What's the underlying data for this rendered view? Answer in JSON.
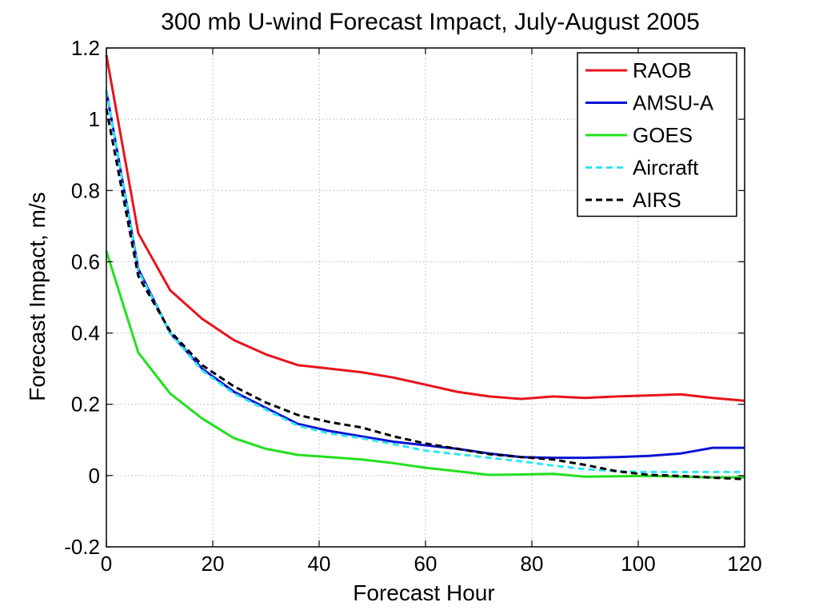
{
  "chart_data": {
    "type": "line",
    "title": "300 mb U-wind Forecast Impact, July-August 2005",
    "xlabel": "Forecast Hour",
    "ylabel": "Forecast Impact, m/s",
    "xlim": [
      0,
      120
    ],
    "ylim": [
      -0.2,
      1.2
    ],
    "xticks": [
      0,
      20,
      40,
      60,
      80,
      100,
      120
    ],
    "yticks": [
      -0.2,
      0,
      0.2,
      0.4,
      0.6,
      0.8,
      1,
      1.2
    ],
    "xtick_labels": [
      "0",
      "20",
      "40",
      "60",
      "80",
      "100",
      "120"
    ],
    "ytick_labels": [
      "-0.2",
      "0",
      "0.2",
      "0.4",
      "0.6",
      "0.8",
      "1",
      "1.2"
    ],
    "grid": true,
    "legend_position": "top-right",
    "series": [
      {
        "name": "RAOB",
        "color": "#e8141c",
        "style": "solid",
        "x": [
          0,
          6,
          12,
          18,
          24,
          30,
          36,
          42,
          48,
          54,
          60,
          66,
          72,
          78,
          84,
          90,
          96,
          102,
          108,
          114,
          120
        ],
        "y": [
          1.18,
          0.68,
          0.52,
          0.44,
          0.38,
          0.34,
          0.31,
          0.3,
          0.29,
          0.275,
          0.255,
          0.235,
          0.222,
          0.215,
          0.222,
          0.218,
          0.222,
          0.225,
          0.228,
          0.218,
          0.21
        ]
      },
      {
        "name": "AMSU-A",
        "color": "#0a14d2",
        "style": "solid",
        "x": [
          0,
          6,
          12,
          18,
          24,
          30,
          36,
          42,
          48,
          54,
          60,
          66,
          72,
          78,
          84,
          90,
          96,
          102,
          108,
          114,
          120
        ],
        "y": [
          1.08,
          0.58,
          0.4,
          0.3,
          0.235,
          0.19,
          0.145,
          0.125,
          0.11,
          0.095,
          0.085,
          0.075,
          0.062,
          0.052,
          0.05,
          0.05,
          0.052,
          0.055,
          0.062,
          0.078,
          0.078
        ]
      },
      {
        "name": "GOES",
        "color": "#22e01e",
        "style": "solid",
        "x": [
          0,
          6,
          12,
          18,
          24,
          30,
          36,
          42,
          48,
          54,
          60,
          66,
          72,
          78,
          84,
          90,
          96,
          102,
          108,
          114,
          120
        ],
        "y": [
          0.63,
          0.345,
          0.23,
          0.16,
          0.105,
          0.075,
          0.058,
          0.052,
          0.045,
          0.035,
          0.022,
          0.012,
          0.002,
          0.003,
          0.005,
          -0.003,
          -0.002,
          -0.001,
          -0.003,
          -0.005,
          -0.005
        ]
      },
      {
        "name": "Aircraft",
        "color": "#2ee6f2",
        "style": "dashed",
        "x": [
          0,
          6,
          12,
          18,
          24,
          30,
          36,
          42,
          48,
          54,
          60,
          66,
          72,
          78,
          84,
          90,
          96,
          102,
          108,
          114,
          120
        ],
        "y": [
          1.08,
          0.575,
          0.4,
          0.295,
          0.23,
          0.185,
          0.14,
          0.118,
          0.105,
          0.088,
          0.07,
          0.06,
          0.05,
          0.04,
          0.028,
          0.018,
          0.012,
          0.01,
          0.01,
          0.01,
          0.01
        ]
      },
      {
        "name": "AIRS",
        "color": "#000000",
        "style": "dashed",
        "x": [
          0,
          6,
          12,
          18,
          24,
          30,
          36,
          42,
          48,
          54,
          60,
          66,
          72,
          78,
          84,
          90,
          96,
          102,
          108,
          114,
          120
        ],
        "y": [
          1.03,
          0.56,
          0.405,
          0.31,
          0.25,
          0.205,
          0.17,
          0.15,
          0.135,
          0.11,
          0.09,
          0.075,
          0.06,
          0.052,
          0.045,
          0.03,
          0.012,
          0.002,
          -0.001,
          -0.006,
          -0.01
        ]
      }
    ]
  }
}
